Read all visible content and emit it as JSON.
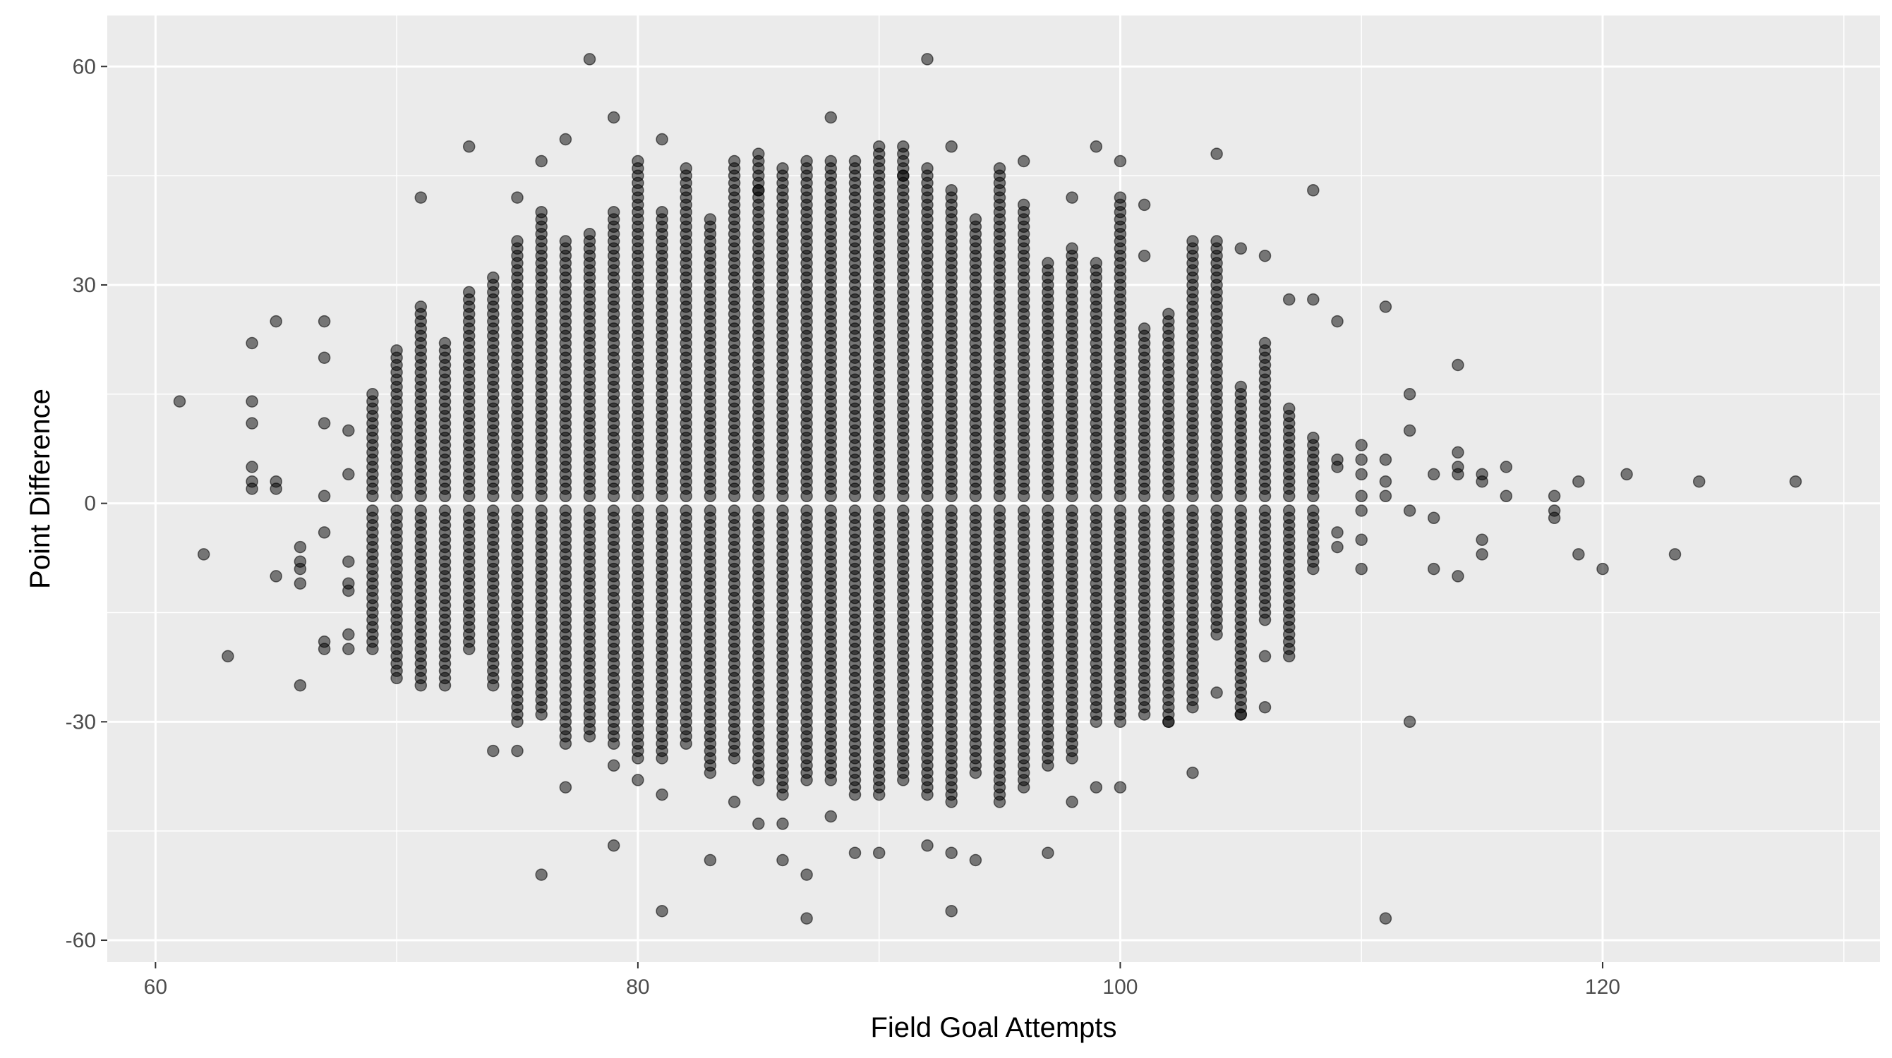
{
  "chart_data": {
    "type": "scatter",
    "title": "",
    "xlabel": "Field Goal Attempts",
    "ylabel": "Point Difference",
    "xlim": [
      58,
      131.5
    ],
    "ylim": [
      -63,
      67
    ],
    "x_ticks": [
      60,
      80,
      100,
      120
    ],
    "y_ticks": [
      -60,
      -30,
      0,
      30,
      60
    ],
    "x_tick_labels": [
      "60",
      "80",
      "100",
      "120"
    ],
    "y_tick_labels": [
      "-60",
      "-30",
      "0",
      "30",
      "60"
    ],
    "grid": true,
    "legend": "none",
    "point_color": "#000000",
    "point_alpha": 0.5,
    "panel_color": "#EBEBEB",
    "grid_color": "#FFFFFF",
    "dense_columns": [
      {
        "x": 69,
        "min": -20,
        "max": 15
      },
      {
        "x": 70,
        "min": -24,
        "max": 21
      },
      {
        "x": 71,
        "min": -25,
        "max": 27
      },
      {
        "x": 72,
        "min": -25,
        "max": 22
      },
      {
        "x": 73,
        "min": -20,
        "max": 29
      },
      {
        "x": 74,
        "min": -25,
        "max": 31
      },
      {
        "x": 75,
        "min": -30,
        "max": 36
      },
      {
        "x": 76,
        "min": -29,
        "max": 40
      },
      {
        "x": 77,
        "min": -33,
        "max": 36
      },
      {
        "x": 78,
        "min": -32,
        "max": 37
      },
      {
        "x": 79,
        "min": -33,
        "max": 40
      },
      {
        "x": 80,
        "min": -35,
        "max": 47
      },
      {
        "x": 81,
        "min": -35,
        "max": 40
      },
      {
        "x": 82,
        "min": -33,
        "max": 46
      },
      {
        "x": 83,
        "min": -37,
        "max": 39
      },
      {
        "x": 84,
        "min": -35,
        "max": 47
      },
      {
        "x": 85,
        "min": -38,
        "max": 48
      },
      {
        "x": 86,
        "min": -40,
        "max": 46
      },
      {
        "x": 87,
        "min": -38,
        "max": 47
      },
      {
        "x": 88,
        "min": -38,
        "max": 47
      },
      {
        "x": 89,
        "min": -40,
        "max": 47
      },
      {
        "x": 90,
        "min": -40,
        "max": 49
      },
      {
        "x": 91,
        "min": -38,
        "max": 49
      },
      {
        "x": 92,
        "min": -40,
        "max": 46
      },
      {
        "x": 93,
        "min": -41,
        "max": 43
      },
      {
        "x": 94,
        "min": -37,
        "max": 39
      },
      {
        "x": 95,
        "min": -41,
        "max": 46
      },
      {
        "x": 96,
        "min": -39,
        "max": 41
      },
      {
        "x": 97,
        "min": -36,
        "max": 33
      },
      {
        "x": 98,
        "min": -35,
        "max": 35
      },
      {
        "x": 99,
        "min": -30,
        "max": 33
      },
      {
        "x": 100,
        "min": -30,
        "max": 42
      },
      {
        "x": 101,
        "min": -29,
        "max": 24
      },
      {
        "x": 102,
        "min": -30,
        "max": 26
      },
      {
        "x": 103,
        "min": -28,
        "max": 36
      },
      {
        "x": 104,
        "min": -18,
        "max": 36
      },
      {
        "x": 105,
        "min": -29,
        "max": 16
      },
      {
        "x": 106,
        "min": -16,
        "max": 22
      },
      {
        "x": 107,
        "min": -21,
        "max": 13
      },
      {
        "x": 108,
        "min": -9,
        "max": 9
      }
    ],
    "points": [
      [
        61,
        14
      ],
      [
        62,
        -7
      ],
      [
        63,
        -21
      ],
      [
        64,
        22
      ],
      [
        64,
        14
      ],
      [
        64,
        11
      ],
      [
        64,
        5
      ],
      [
        64,
        3
      ],
      [
        64,
        2
      ],
      [
        65,
        25
      ],
      [
        65,
        3
      ],
      [
        65,
        2
      ],
      [
        65,
        -10
      ],
      [
        66,
        -6
      ],
      [
        66,
        -8
      ],
      [
        66,
        -9
      ],
      [
        66,
        -11
      ],
      [
        66,
        -25
      ],
      [
        67,
        25
      ],
      [
        67,
        20
      ],
      [
        67,
        11
      ],
      [
        67,
        1
      ],
      [
        67,
        -4
      ],
      [
        67,
        -19
      ],
      [
        67,
        -20
      ],
      [
        68,
        10
      ],
      [
        68,
        4
      ],
      [
        68,
        -8
      ],
      [
        68,
        -11
      ],
      [
        68,
        -12
      ],
      [
        68,
        -18
      ],
      [
        68,
        -20
      ],
      [
        71,
        42
      ],
      [
        73,
        49
      ],
      [
        74,
        -34
      ],
      [
        75,
        42
      ],
      [
        75,
        -34
      ],
      [
        76,
        47
      ],
      [
        76,
        -51
      ],
      [
        77,
        50
      ],
      [
        77,
        -39
      ],
      [
        78,
        61
      ],
      [
        79,
        53
      ],
      [
        79,
        -36
      ],
      [
        79,
        -47
      ],
      [
        80,
        -38
      ],
      [
        81,
        50
      ],
      [
        81,
        -40
      ],
      [
        81,
        -56
      ],
      [
        83,
        -49
      ],
      [
        84,
        -41
      ],
      [
        85,
        43
      ],
      [
        85,
        -44
      ],
      [
        86,
        -44
      ],
      [
        86,
        -49
      ],
      [
        87,
        -51
      ],
      [
        87,
        -57
      ],
      [
        88,
        53
      ],
      [
        88,
        -43
      ],
      [
        89,
        -48
      ],
      [
        90,
        -48
      ],
      [
        91,
        45
      ],
      [
        92,
        61
      ],
      [
        92,
        -47
      ],
      [
        93,
        49
      ],
      [
        93,
        -48
      ],
      [
        93,
        -56
      ],
      [
        94,
        -49
      ],
      [
        96,
        47
      ],
      [
        97,
        -48
      ],
      [
        98,
        42
      ],
      [
        98,
        -41
      ],
      [
        99,
        49
      ],
      [
        99,
        -39
      ],
      [
        100,
        47
      ],
      [
        100,
        -39
      ],
      [
        101,
        41
      ],
      [
        101,
        34
      ],
      [
        102,
        -30
      ],
      [
        103,
        -37
      ],
      [
        104,
        48
      ],
      [
        104,
        -26
      ],
      [
        105,
        35
      ],
      [
        105,
        -29
      ],
      [
        106,
        34
      ],
      [
        106,
        -21
      ],
      [
        106,
        -28
      ],
      [
        107,
        28
      ],
      [
        108,
        43
      ],
      [
        108,
        28
      ],
      [
        109,
        25
      ],
      [
        109,
        5
      ],
      [
        109,
        6
      ],
      [
        109,
        -4
      ],
      [
        109,
        -6
      ],
      [
        110,
        8
      ],
      [
        110,
        6
      ],
      [
        110,
        4
      ],
      [
        110,
        1
      ],
      [
        110,
        -1
      ],
      [
        110,
        -5
      ],
      [
        110,
        -9
      ],
      [
        111,
        27
      ],
      [
        111,
        6
      ],
      [
        111,
        3
      ],
      [
        111,
        1
      ],
      [
        111,
        -57
      ],
      [
        112,
        15
      ],
      [
        112,
        10
      ],
      [
        112,
        -1
      ],
      [
        112,
        -30
      ],
      [
        113,
        4
      ],
      [
        113,
        -2
      ],
      [
        113,
        -9
      ],
      [
        114,
        19
      ],
      [
        114,
        7
      ],
      [
        114,
        5
      ],
      [
        114,
        4
      ],
      [
        114,
        -10
      ],
      [
        115,
        4
      ],
      [
        115,
        3
      ],
      [
        115,
        -5
      ],
      [
        115,
        -7
      ],
      [
        116,
        5
      ],
      [
        116,
        1
      ],
      [
        118,
        1
      ],
      [
        118,
        -1
      ],
      [
        118,
        -2
      ],
      [
        119,
        3
      ],
      [
        119,
        -7
      ],
      [
        120,
        -9
      ],
      [
        121,
        4
      ],
      [
        123,
        -7
      ],
      [
        124,
        3
      ],
      [
        128,
        3
      ]
    ]
  }
}
